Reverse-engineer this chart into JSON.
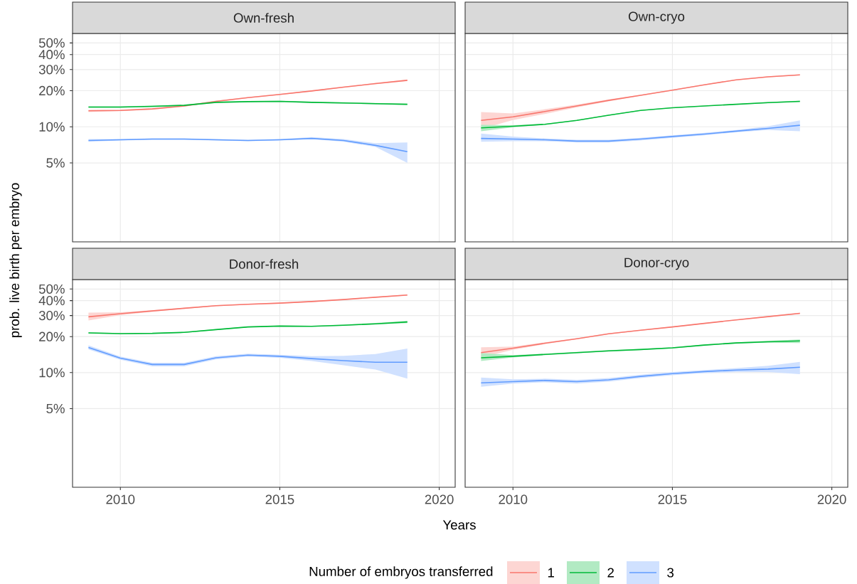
{
  "chart_data": [
    {
      "type": "line",
      "title": "Own-fresh",
      "ylabel": "prob. live birth per embryo",
      "legend_title": "Number of embryos transferred",
      "legend": "bottom",
      "grid": true,
      "tick_labels": "y",
      "log": "y",
      "x": [
        2009,
        2010,
        2011,
        2012,
        2013,
        2014,
        2015,
        2016,
        2017,
        2018,
        2019
      ],
      "xlim": [
        2008.5,
        2020.5
      ],
      "xticks": [
        2010,
        2015,
        2020
      ],
      "ylim": [
        1.1,
        60
      ],
      "yticks": [
        {
          "value": 5,
          "label": "5%"
        },
        {
          "value": 10,
          "label": "10%"
        },
        {
          "value": 20,
          "label": "20%"
        },
        {
          "value": 30,
          "label": "30%"
        },
        {
          "value": 40,
          "label": "40%"
        },
        {
          "value": 50,
          "label": "50%"
        }
      ],
      "series": [
        {
          "name": "1",
          "color": "#f8766d",
          "values": [
            13.6,
            13.7,
            14.1,
            14.9,
            16.3,
            17.5,
            18.6,
            19.9,
            21.4,
            22.9,
            24.4
          ],
          "lower": [
            13.3,
            13.5,
            13.9,
            14.7,
            16.1,
            17.3,
            18.4,
            19.7,
            21.2,
            22.6,
            24.0
          ],
          "upper": [
            13.9,
            13.9,
            14.3,
            15.1,
            16.5,
            17.7,
            18.8,
            20.1,
            21.6,
            23.2,
            24.8
          ]
        },
        {
          "name": "2",
          "color": "#00ba38",
          "values": [
            14.6,
            14.6,
            14.8,
            15.1,
            16.0,
            16.2,
            16.3,
            16.0,
            15.8,
            15.6,
            15.4
          ],
          "lower": [
            14.4,
            14.4,
            14.6,
            14.9,
            15.8,
            16.0,
            16.1,
            15.8,
            15.6,
            15.4,
            15.2
          ],
          "upper": [
            14.8,
            14.8,
            15.0,
            15.3,
            16.2,
            16.4,
            16.5,
            16.2,
            16.0,
            15.8,
            15.6
          ]
        },
        {
          "name": "3",
          "color": "#619cff",
          "values": [
            7.7,
            7.8,
            7.9,
            7.9,
            7.8,
            7.7,
            7.8,
            8.0,
            7.7,
            7.0,
            6.2
          ],
          "lower": [
            7.5,
            7.7,
            7.8,
            7.8,
            7.7,
            7.6,
            7.7,
            7.9,
            7.5,
            6.8,
            5.0
          ],
          "upper": [
            7.9,
            7.9,
            8.0,
            8.0,
            7.9,
            7.8,
            7.9,
            8.2,
            7.9,
            7.3,
            7.4
          ]
        }
      ]
    },
    {
      "type": "line",
      "title": "Own-cryo",
      "grid": true,
      "tick_labels": false,
      "log": "y",
      "x": [
        2009,
        2010,
        2011,
        2012,
        2013,
        2014,
        2015,
        2016,
        2017,
        2018,
        2019
      ],
      "xlim": [
        2008.5,
        2020.5
      ],
      "xticks": [
        2010,
        2015,
        2020
      ],
      "ylim": [
        1.1,
        60
      ],
      "yticks": [
        {
          "value": 5,
          "label": null
        },
        {
          "value": 10,
          "label": null
        },
        {
          "value": 20,
          "label": null
        },
        {
          "value": 30,
          "label": null
        },
        {
          "value": 40,
          "label": null
        },
        {
          "value": 50,
          "label": null
        }
      ],
      "series": [
        {
          "color": "#f8766d",
          "values": [
            11.3,
            12.1,
            13.4,
            14.9,
            16.6,
            18.3,
            20.2,
            22.4,
            24.6,
            26.1,
            27.1
          ],
          "lower": [
            9.6,
            11.4,
            12.8,
            14.5,
            16.3,
            18.1,
            20.0,
            22.2,
            24.4,
            25.8,
            26.8
          ],
          "upper": [
            13.3,
            12.9,
            14.0,
            15.3,
            16.9,
            18.5,
            20.4,
            22.6,
            24.8,
            26.4,
            27.4
          ]
        },
        {
          "color": "#00ba38",
          "values": [
            9.8,
            10.1,
            10.5,
            11.3,
            12.5,
            13.7,
            14.4,
            14.9,
            15.4,
            15.9,
            16.3
          ],
          "lower": [
            9.2,
            9.9,
            10.4,
            11.2,
            12.4,
            13.6,
            14.3,
            14.8,
            15.3,
            15.7,
            16.1
          ],
          "upper": [
            10.4,
            10.3,
            10.6,
            11.4,
            12.6,
            13.8,
            14.5,
            15.0,
            15.5,
            16.1,
            16.5
          ]
        },
        {
          "color": "#619cff",
          "values": [
            8.0,
            7.9,
            7.8,
            7.6,
            7.6,
            7.9,
            8.3,
            8.7,
            9.2,
            9.7,
            10.3
          ],
          "lower": [
            7.5,
            7.6,
            7.6,
            7.4,
            7.4,
            7.7,
            8.1,
            8.5,
            9.0,
            9.4,
            9.2
          ],
          "upper": [
            8.8,
            8.3,
            8.0,
            7.8,
            7.8,
            8.1,
            8.5,
            8.9,
            9.4,
            10.1,
            11.3
          ]
        }
      ]
    },
    {
      "type": "line",
      "title": "Donor-fresh",
      "xlabel": "Years",
      "grid": true,
      "log": "y",
      "x": [
        2009,
        2010,
        2011,
        2012,
        2013,
        2014,
        2015,
        2016,
        2017,
        2018,
        2019
      ],
      "xlim": [
        2008.5,
        2020.5
      ],
      "xticks": [
        2010,
        2015,
        2020
      ],
      "ylim": [
        1.1,
        60
      ],
      "yticks": [
        {
          "value": 5,
          "label": "5%"
        },
        {
          "value": 10,
          "label": "10%"
        },
        {
          "value": 20,
          "label": "20%"
        },
        {
          "value": 30,
          "label": "30%"
        },
        {
          "value": 40,
          "label": "40%"
        },
        {
          "value": 50,
          "label": "50%"
        }
      ],
      "series": [
        {
          "color": "#f8766d",
          "values": [
            29.3,
            31.1,
            32.8,
            34.5,
            36.3,
            37.3,
            38.1,
            39.3,
            40.8,
            42.7,
            44.5
          ],
          "lower": [
            27.3,
            30.2,
            32.3,
            34.1,
            35.9,
            36.9,
            37.7,
            38.9,
            40.4,
            42.3,
            44.0
          ],
          "upper": [
            31.7,
            32.0,
            33.3,
            34.9,
            36.7,
            37.7,
            38.5,
            39.7,
            41.2,
            43.1,
            45.0
          ]
        },
        {
          "color": "#00ba38",
          "values": [
            21.5,
            21.2,
            21.3,
            21.7,
            22.9,
            24.1,
            24.5,
            24.4,
            24.9,
            25.6,
            26.5
          ],
          "lower": [
            21.2,
            21.0,
            21.1,
            21.5,
            22.7,
            23.9,
            24.3,
            24.2,
            24.6,
            25.2,
            25.9
          ],
          "upper": [
            21.8,
            21.4,
            21.5,
            21.9,
            23.1,
            24.3,
            24.7,
            24.6,
            25.2,
            26.0,
            27.1
          ]
        },
        {
          "color": "#619cff",
          "values": [
            16.2,
            13.2,
            11.7,
            11.7,
            13.3,
            14.0,
            13.7,
            13.1,
            12.6,
            12.2,
            12.2
          ],
          "lower": [
            15.6,
            12.8,
            11.3,
            11.3,
            12.9,
            13.6,
            13.3,
            12.5,
            11.5,
            10.6,
            8.9
          ],
          "upper": [
            16.9,
            13.6,
            12.1,
            12.1,
            13.7,
            14.4,
            14.1,
            13.7,
            13.8,
            14.3,
            15.9
          ]
        }
      ]
    },
    {
      "type": "line",
      "title": "Donor-cryo",
      "grid": true,
      "tick_labels": "x",
      "log": "y",
      "x": [
        2009,
        2010,
        2011,
        2012,
        2013,
        2014,
        2015,
        2016,
        2017,
        2018,
        2019
      ],
      "xlim": [
        2008.5,
        2020.5
      ],
      "xticks": [
        2010,
        2015,
        2020
      ],
      "ylim": [
        1.1,
        60
      ],
      "yticks": [
        {
          "value": 5,
          "label": null
        },
        {
          "value": 10,
          "label": null
        },
        {
          "value": 20,
          "label": null
        },
        {
          "value": 30,
          "label": null
        },
        {
          "value": 40,
          "label": null
        },
        {
          "value": 50,
          "label": null
        }
      ],
      "series": [
        {
          "color": "#f8766d",
          "values": [
            14.7,
            16.0,
            17.6,
            19.2,
            21.1,
            22.6,
            24.1,
            25.8,
            27.6,
            29.4,
            31.3
          ],
          "lower": [
            13.4,
            15.5,
            17.3,
            19.0,
            20.9,
            22.4,
            23.9,
            25.6,
            27.4,
            29.1,
            30.9
          ],
          "upper": [
            16.3,
            16.5,
            17.9,
            19.4,
            21.3,
            22.8,
            24.3,
            26.0,
            27.8,
            29.7,
            31.7
          ]
        },
        {
          "color": "#00ba38",
          "values": [
            13.3,
            13.7,
            14.2,
            14.7,
            15.2,
            15.6,
            16.1,
            17.0,
            17.7,
            18.1,
            18.4
          ],
          "lower": [
            12.5,
            13.4,
            14.0,
            14.5,
            15.0,
            15.4,
            15.9,
            16.8,
            17.5,
            17.8,
            17.7
          ],
          "upper": [
            14.6,
            14.0,
            14.4,
            14.9,
            15.4,
            15.8,
            16.3,
            17.2,
            17.9,
            18.5,
            18.9
          ]
        },
        {
          "color": "#619cff",
          "values": [
            8.2,
            8.4,
            8.6,
            8.4,
            8.7,
            9.3,
            9.8,
            10.2,
            10.5,
            10.7,
            11.1
          ],
          "lower": [
            7.6,
            8.1,
            8.3,
            8.1,
            8.4,
            9.0,
            9.5,
            9.9,
            10.1,
            10.1,
            9.7
          ],
          "upper": [
            9.1,
            8.8,
            8.9,
            8.7,
            9.0,
            9.6,
            10.1,
            10.5,
            10.9,
            11.4,
            12.3
          ]
        }
      ]
    }
  ]
}
